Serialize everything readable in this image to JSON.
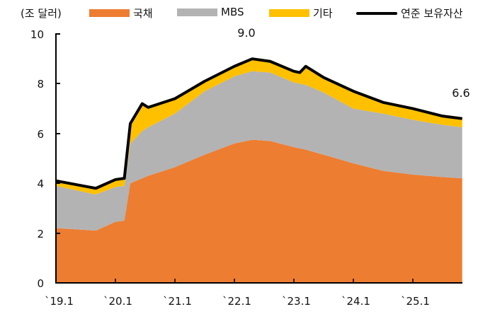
{
  "chart_data": {
    "type": "area",
    "title": "",
    "unit_label": "(조 달러)",
    "xlabel": "",
    "ylabel": "조 달러",
    "ylim": [
      0,
      10
    ],
    "yticks": [
      0,
      2,
      4,
      6,
      8,
      10
    ],
    "xticks": [
      "`19.1",
      "`20.1",
      "`21.1",
      "`22.1",
      "`23.1",
      "`24.1",
      "`25.1"
    ],
    "grid": false,
    "legend_position": "top",
    "x": [
      2019.0,
      2019.67,
      2020.0,
      2020.15,
      2020.25,
      2020.45,
      2020.55,
      2021.0,
      2021.5,
      2022.0,
      2022.3,
      2022.6,
      2023.0,
      2023.1,
      2023.2,
      2023.5,
      2024.0,
      2024.5,
      2025.0,
      2025.5,
      2025.83
    ],
    "series": [
      {
        "name": "국채",
        "kind": "stacked-area",
        "color": "#ED7D31",
        "values": [
          2.2,
          2.1,
          2.45,
          2.5,
          4.0,
          4.2,
          4.3,
          4.65,
          5.15,
          5.6,
          5.75,
          5.7,
          5.45,
          5.4,
          5.35,
          5.15,
          4.8,
          4.5,
          4.35,
          4.25,
          4.2
        ]
      },
      {
        "name": "MBS",
        "kind": "stacked-area",
        "color": "#B3B3B3",
        "values": [
          1.7,
          1.45,
          1.4,
          1.4,
          1.6,
          1.9,
          1.95,
          2.15,
          2.55,
          2.7,
          2.75,
          2.75,
          2.6,
          2.6,
          2.6,
          2.5,
          2.2,
          2.3,
          2.2,
          2.1,
          2.05
        ]
      },
      {
        "name": "기타",
        "kind": "stacked-area",
        "color": "#FFC000",
        "values": [
          0.2,
          0.25,
          0.3,
          0.3,
          0.8,
          1.1,
          0.8,
          0.6,
          0.4,
          0.4,
          0.5,
          0.45,
          0.45,
          0.45,
          0.75,
          0.6,
          0.7,
          0.45,
          0.45,
          0.35,
          0.35
        ]
      },
      {
        "name": "연준 보유자산",
        "kind": "line",
        "color": "#000000",
        "values": [
          4.1,
          3.8,
          4.15,
          4.2,
          6.4,
          7.2,
          7.05,
          7.4,
          8.1,
          8.7,
          9.0,
          8.9,
          8.5,
          8.45,
          8.7,
          8.25,
          7.7,
          7.25,
          7.0,
          6.7,
          6.6
        ]
      }
    ],
    "annotations": [
      {
        "text": "9.0",
        "x": 2022.3,
        "y": 9.0
      },
      {
        "text": "6.6",
        "x": 2025.83,
        "y": 6.6
      }
    ]
  },
  "legend": {
    "unit": "(조 달러)",
    "items": [
      {
        "label": "국채",
        "color": "#ED7D31"
      },
      {
        "label": "MBS",
        "color": "#B3B3B3"
      },
      {
        "label": "기타",
        "color": "#FFC000"
      },
      {
        "label": "연준 보유자산",
        "color": "#000000"
      }
    ]
  },
  "axis": {
    "y_labels": [
      "0",
      "2",
      "4",
      "6",
      "8",
      "10"
    ],
    "x_labels": [
      "`19.1",
      "`20.1",
      "`21.1",
      "`22.1",
      "`23.1",
      "`24.1",
      "`25.1"
    ]
  },
  "annotations": {
    "peak": "9.0",
    "latest": "6.6"
  }
}
